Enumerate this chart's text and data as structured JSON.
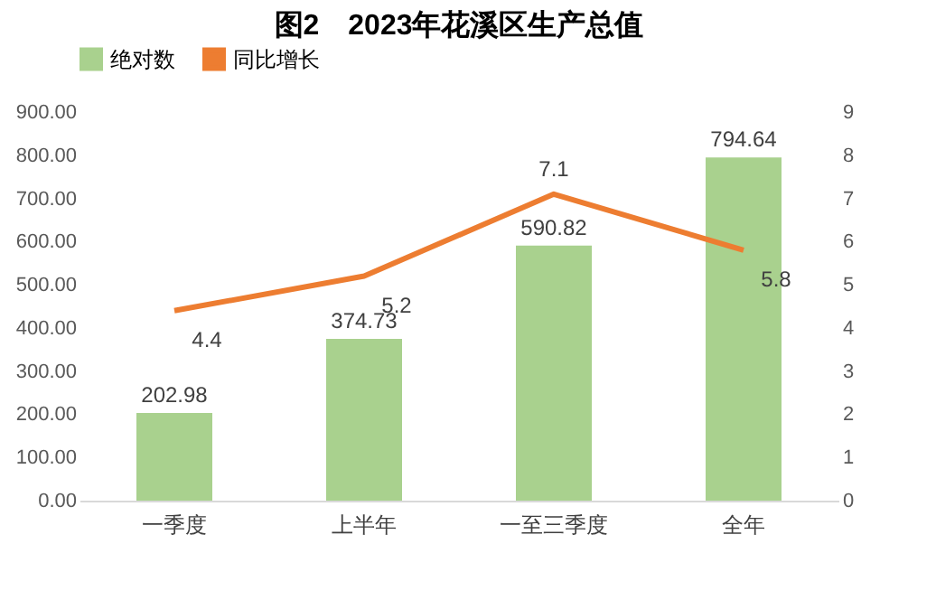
{
  "chart_data": {
    "type": "bar",
    "title": "图2　2023年花溪区生产总值",
    "categories": [
      "一季度",
      "上半年",
      "一至三季度",
      "全年"
    ],
    "series": [
      {
        "name": "绝对数",
        "color": "#a9d18e",
        "values": [
          202.98,
          374.73,
          590.82,
          794.64
        ]
      },
      {
        "name": "同比增长",
        "type": "line",
        "axis": "y2",
        "color": "#ed7d31",
        "values": [
          4.4,
          5.2,
          7.1,
          5.8
        ]
      }
    ],
    "ylim": [
      0,
      900
    ],
    "yticks": [
      {
        "value": 0,
        "label": "0.00"
      },
      {
        "value": 100,
        "label": "100.00"
      },
      {
        "value": 200,
        "label": "200.00"
      },
      {
        "value": 300,
        "label": "300.00"
      },
      {
        "value": 400,
        "label": "400.00"
      },
      {
        "value": 500,
        "label": "500.00"
      },
      {
        "value": 600,
        "label": "600.00"
      },
      {
        "value": 700,
        "label": "700.00"
      },
      {
        "value": 800,
        "label": "800.00"
      },
      {
        "value": 900,
        "label": "900.00"
      }
    ],
    "y2lim": [
      0,
      9
    ],
    "y2ticks": [
      0,
      1,
      2,
      3,
      4,
      5,
      6,
      7,
      8,
      9
    ],
    "data_labels": true,
    "legend": "top",
    "marker": "none",
    "line_style": "solid"
  }
}
